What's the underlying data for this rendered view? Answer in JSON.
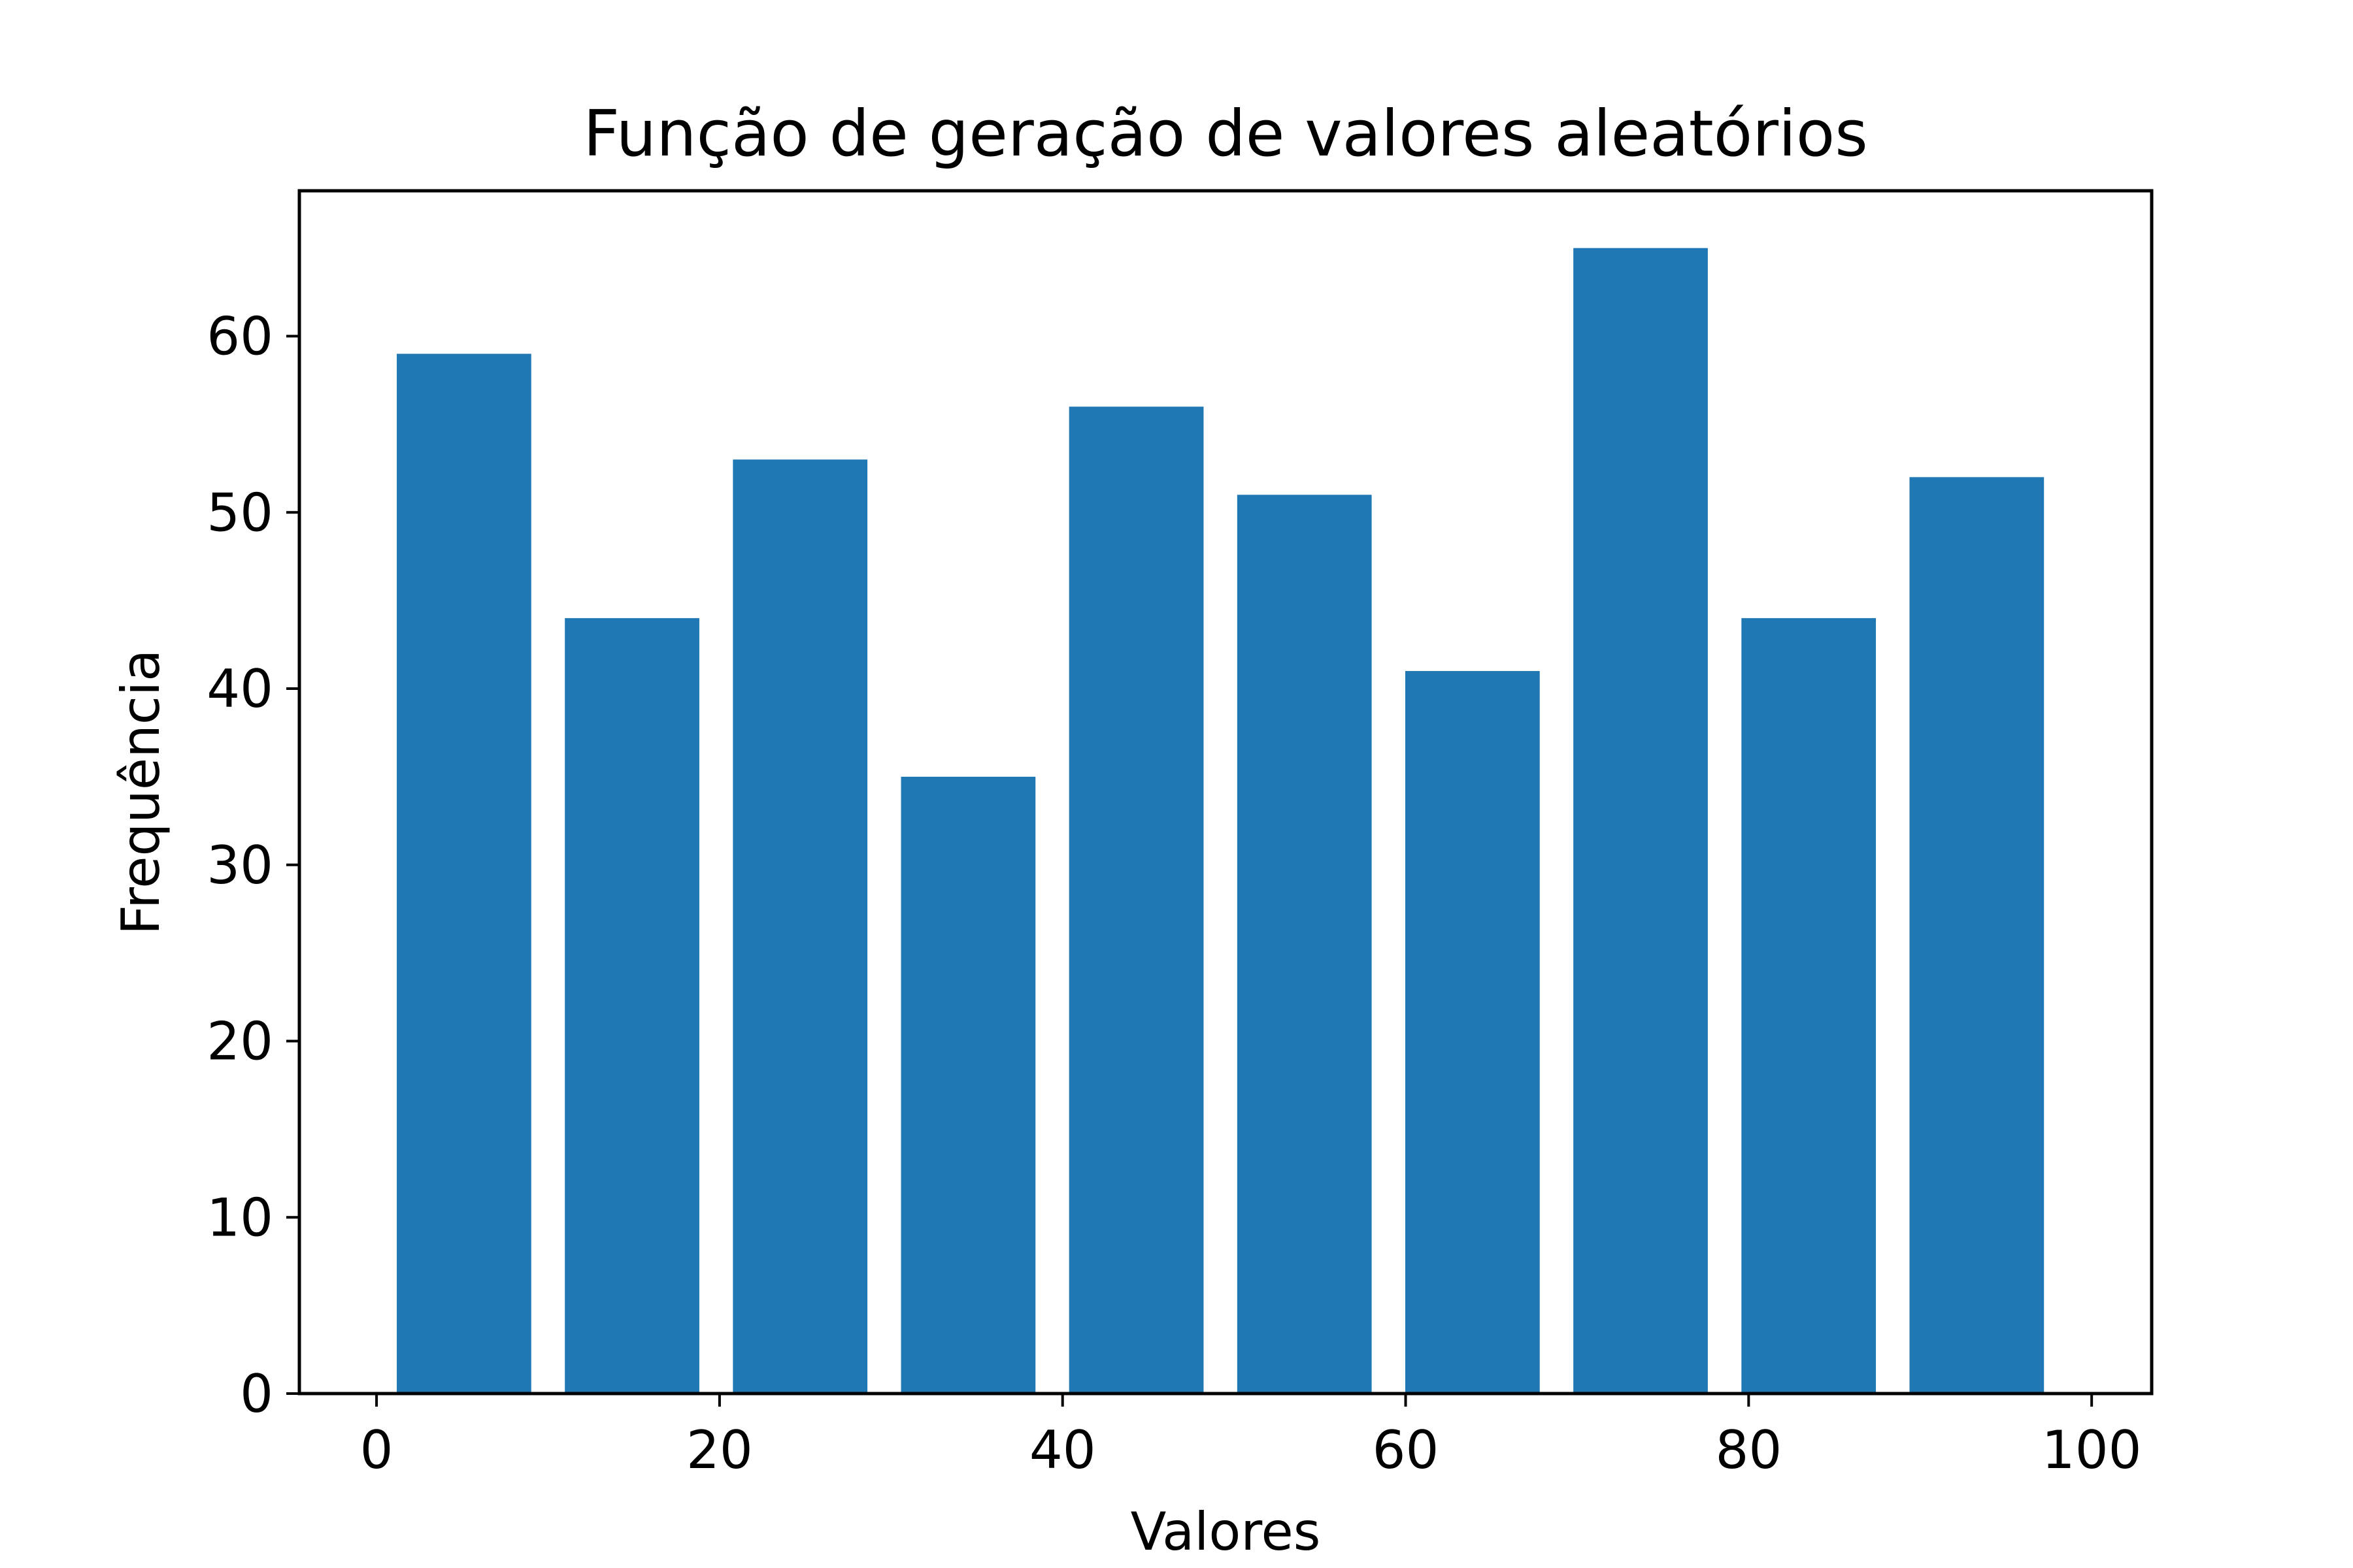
{
  "chart_data": {
    "type": "bar",
    "title": "Função de geração de valores aleatórios",
    "xlabel": "Valores",
    "ylabel": "Frequência",
    "xlim": [
      -4.5,
      103.5
    ],
    "ylim": [
      0,
      68.25
    ],
    "xticks": [
      0,
      20,
      40,
      60,
      80,
      100
    ],
    "yticks": [
      0,
      10,
      20,
      30,
      40,
      50,
      60
    ],
    "grid": false,
    "bar_color": "#1f77b4",
    "bins": [
      {
        "start": 0.2,
        "end": 10.0,
        "value": 59
      },
      {
        "start": 10.0,
        "end": 19.8,
        "value": 44
      },
      {
        "start": 19.8,
        "end": 29.6,
        "value": 53
      },
      {
        "start": 29.6,
        "end": 39.4,
        "value": 35
      },
      {
        "start": 39.4,
        "end": 49.2,
        "value": 56
      },
      {
        "start": 49.2,
        "end": 59.0,
        "value": 51
      },
      {
        "start": 59.0,
        "end": 68.8,
        "value": 41
      },
      {
        "start": 68.8,
        "end": 78.6,
        "value": 65
      },
      {
        "start": 78.6,
        "end": 88.4,
        "value": 44
      },
      {
        "start": 88.4,
        "end": 98.2,
        "value": 52
      }
    ]
  }
}
